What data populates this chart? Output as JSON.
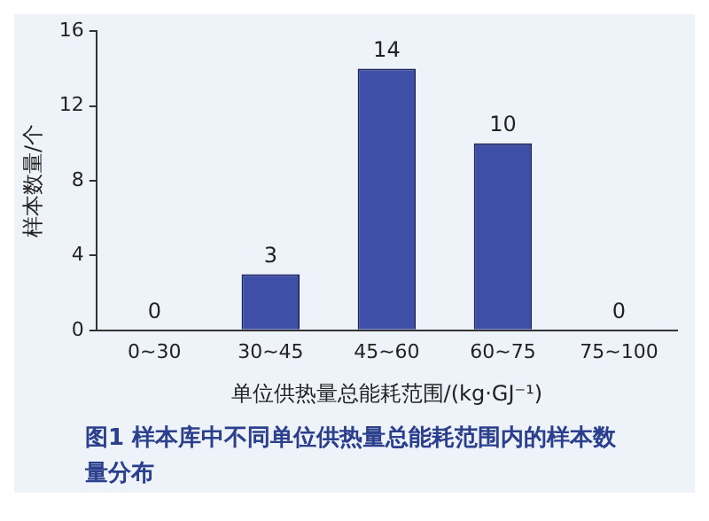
{
  "chart_data": {
    "type": "bar",
    "categories": [
      "0~30",
      "30~45",
      "45~60",
      "60~75",
      "75~100"
    ],
    "values": [
      0,
      3,
      14,
      10,
      0
    ],
    "color": "#3d4fa6",
    "ylim": [
      0,
      16
    ],
    "yticks": [
      0,
      4,
      8,
      12,
      16
    ],
    "grid": false,
    "legend": false,
    "data_labels": true,
    "ylabel": "样本数量/个",
    "xlabel": "单位供热量总能耗范围/(kg·GJ⁻¹)",
    "annotations": [
      "图1  样本库中不同单位供热量总能耗范围内的样本数量分布"
    ]
  }
}
